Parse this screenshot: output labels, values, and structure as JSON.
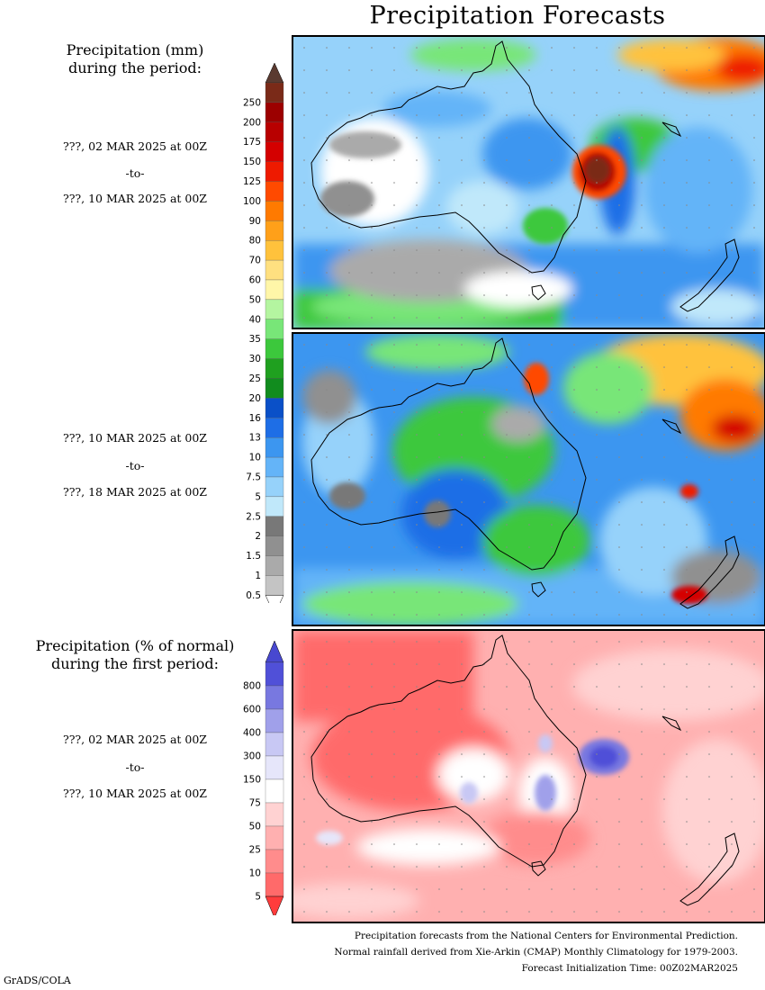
{
  "title": "Precipitation Forecasts",
  "precip_heading": [
    "Precipitation (mm)",
    "during the period:"
  ],
  "pct_heading": [
    "Precipitation (% of normal)",
    "during the first period:"
  ],
  "periods": [
    {
      "start": "???, 02 MAR 2025 at 00Z",
      "sep": "-to-",
      "end": "???, 10 MAR 2025 at 00Z"
    },
    {
      "start": "???, 10 MAR 2025 at 00Z",
      "sep": "-to-",
      "end": "???, 18 MAR 2025 at 00Z"
    },
    {
      "start": "???, 02 MAR 2025 at 00Z",
      "sep": "-to-",
      "end": "???, 10 MAR 2025 at 00Z"
    }
  ],
  "precip_colorbar": {
    "labels": [
      "250",
      "200",
      "175",
      "150",
      "125",
      "100",
      "90",
      "80",
      "70",
      "60",
      "50",
      "40",
      "35",
      "30",
      "25",
      "20",
      "16",
      "13",
      "10",
      "7.5",
      "5",
      "2.5",
      "2",
      "1.5",
      "1",
      "0.5"
    ],
    "colors": [
      "#7a2a18",
      "#9c0000",
      "#b80000",
      "#d40000",
      "#ee1a00",
      "#ff4a00",
      "#ff7a00",
      "#ffa019",
      "#ffc23c",
      "#ffe080",
      "#fff6a8",
      "#b4f5a0",
      "#78e678",
      "#3cc83c",
      "#1fa01f",
      "#118c1e",
      "#0a50c8",
      "#1e6ee6",
      "#3c96f0",
      "#64b4f8",
      "#96d2fa",
      "#c0e8fa",
      "#787878",
      "#909090",
      "#aaaaaa",
      "#c4c4c4"
    ],
    "top_arrow_color": "#5a3a30"
  },
  "pct_colorbar": {
    "labels": [
      "800",
      "600",
      "400",
      "300",
      "150",
      "75",
      "50",
      "25",
      "10",
      "5"
    ],
    "colors": [
      "#5050d8",
      "#7878e0",
      "#a0a0ea",
      "#c8c8f4",
      "#e6e6fa",
      "#ffffff",
      "#ffd2d2",
      "#ffb0b0",
      "#ff8c8c",
      "#ff6a6a"
    ],
    "top_arrow_color": "#4848d0",
    "bottom_arrow_color": "#ff3c3c"
  },
  "footer": [
    "Precipitation forecasts from the National Centers for Environmental Prediction.",
    "Normal rainfall derived from Xie-Arkin (CMAP) Monthly Climatology for 1979-2003.",
    "Forecast Initialization Time: 00Z02MAR2025"
  ],
  "credit": "GrADS/COLA"
}
